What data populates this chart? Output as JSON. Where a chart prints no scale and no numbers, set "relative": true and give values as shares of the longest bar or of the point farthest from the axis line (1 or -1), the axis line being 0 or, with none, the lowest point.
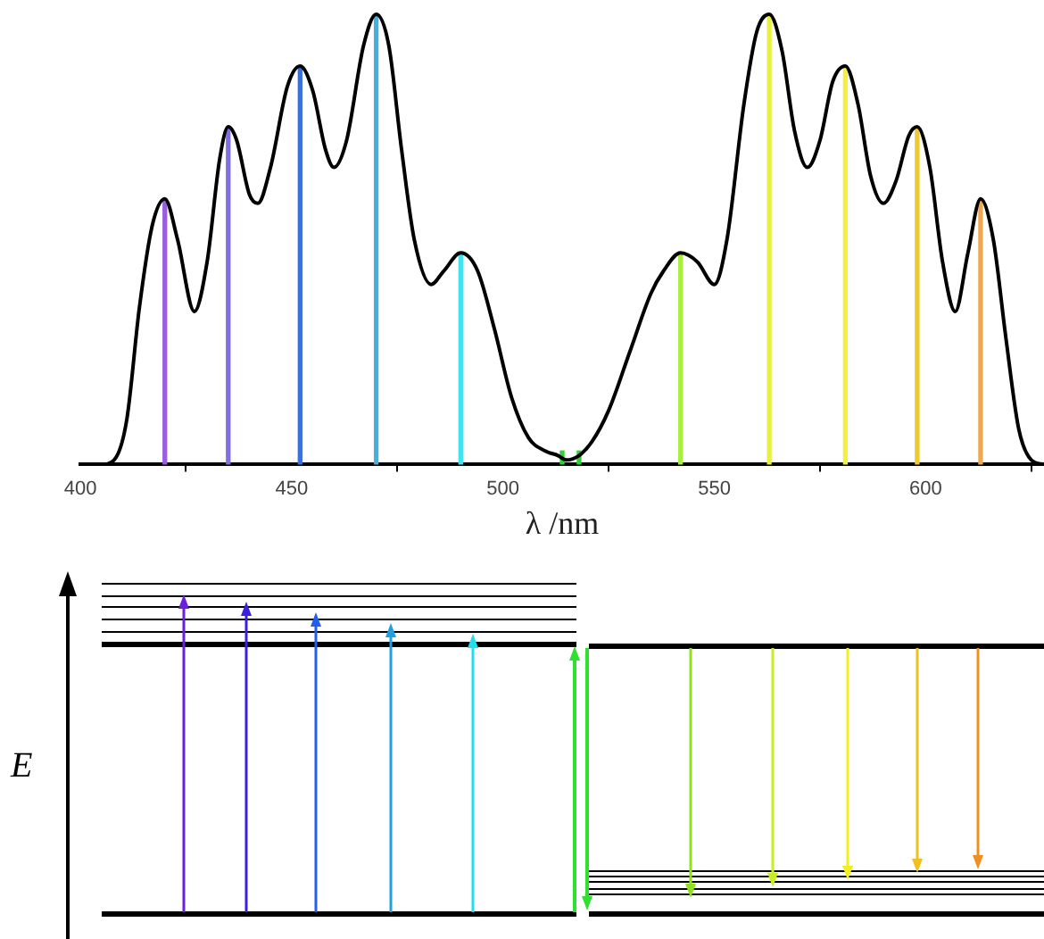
{
  "chart_data": [
    {
      "type": "line",
      "xlabel": "λ /nm",
      "relative": true,
      "xlim": [
        400,
        628
      ],
      "xticks": [
        400,
        450,
        500,
        550,
        600
      ],
      "grid": false,
      "legend": false,
      "series": [
        {
          "type": "line",
          "color": "#000000",
          "x": [
            400,
            405,
            408,
            411,
            414,
            417,
            420,
            423,
            427,
            430,
            433,
            435,
            437,
            440,
            442,
            445,
            449,
            452,
            455,
            458,
            460,
            463,
            467,
            470,
            473,
            476,
            479,
            483,
            486,
            490,
            494,
            498,
            502,
            506,
            510,
            513,
            515,
            518,
            521,
            525,
            530,
            535,
            538,
            542,
            546,
            550,
            553,
            557,
            560,
            563,
            566,
            569,
            572,
            575,
            578,
            581,
            584,
            587,
            590,
            593,
            596,
            598,
            601,
            604,
            607,
            610,
            613,
            616,
            619,
            622,
            625,
            628
          ],
          "values": [
            0,
            0,
            0.01,
            0.1,
            0.35,
            0.53,
            0.59,
            0.5,
            0.34,
            0.45,
            0.68,
            0.75,
            0.72,
            0.6,
            0.58,
            0.66,
            0.84,
            0.885,
            0.83,
            0.7,
            0.66,
            0.72,
            0.93,
            1,
            0.93,
            0.7,
            0.5,
            0.4,
            0.43,
            0.47,
            0.43,
            0.3,
            0.15,
            0.06,
            0.03,
            0.02,
            0.01,
            0.02,
            0.05,
            0.12,
            0.25,
            0.38,
            0.43,
            0.47,
            0.45,
            0.4,
            0.5,
            0.8,
            0.96,
            1,
            0.92,
            0.74,
            0.66,
            0.72,
            0.85,
            0.885,
            0.8,
            0.64,
            0.58,
            0.63,
            0.73,
            0.75,
            0.66,
            0.45,
            0.34,
            0.47,
            0.59,
            0.5,
            0.28,
            0.08,
            0.01,
            0
          ]
        },
        {
          "type": "bar",
          "x": [
            420,
            435,
            452,
            470,
            490,
            514,
            518,
            542,
            563,
            581,
            598,
            613
          ],
          "values": [
            0.59,
            0.75,
            0.885,
            1,
            0.47,
            0.03,
            0.03,
            0.47,
            1,
            0.885,
            0.75,
            0.59
          ],
          "colors": [
            "#9b5ce0",
            "#7f70e0",
            "#3a70d8",
            "#48aee0",
            "#40e4f0",
            "#30d030",
            "#30d030",
            "#a8f040",
            "#e8f040",
            "#f4f040",
            "#f0c830",
            "#f0a850"
          ]
        }
      ]
    },
    {
      "type": "other",
      "ylabel": "E"
    }
  ]
}
